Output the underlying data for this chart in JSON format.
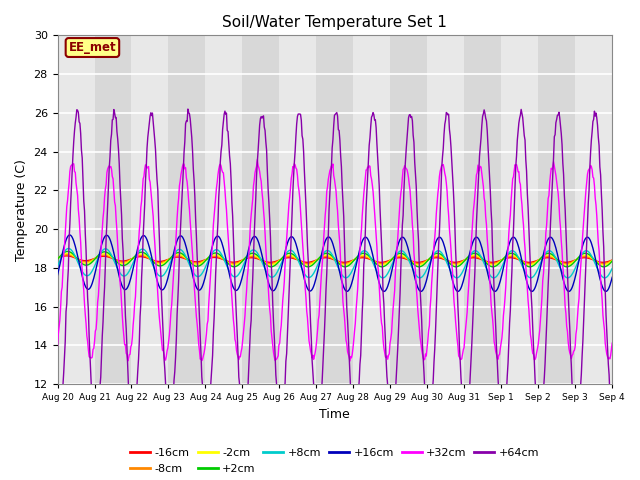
{
  "title": "Soil/Water Temperature Set 1",
  "xlabel": "Time",
  "ylabel": "Temperature (C)",
  "ylim": [
    12,
    30
  ],
  "yticks": [
    12,
    14,
    16,
    18,
    20,
    22,
    24,
    26,
    28,
    30
  ],
  "annotation": "EE_met",
  "series_order": [
    "-16cm",
    "-8cm",
    "-2cm",
    "+2cm",
    "+8cm",
    "+16cm",
    "+32cm",
    "+64cm"
  ],
  "series": {
    "-16cm": {
      "color": "#ff0000",
      "linewidth": 1.0,
      "base": 18.5,
      "amp": 0.12,
      "phase_shift": 0.0
    },
    "-8cm": {
      "color": "#ff8800",
      "linewidth": 1.0,
      "base": 18.5,
      "amp": 0.18,
      "phase_shift": 0.05
    },
    "-2cm": {
      "color": "#ffff00",
      "linewidth": 1.0,
      "base": 18.5,
      "amp": 0.25,
      "phase_shift": 0.1
    },
    "+2cm": {
      "color": "#00cc00",
      "linewidth": 1.0,
      "base": 18.5,
      "amp": 0.35,
      "phase_shift": 0.15
    },
    "+8cm": {
      "color": "#00cccc",
      "linewidth": 1.0,
      "base": 18.3,
      "amp": 0.7,
      "phase_shift": 0.3
    },
    "+16cm": {
      "color": "#0000bb",
      "linewidth": 1.0,
      "base": 18.3,
      "amp": 1.4,
      "phase_shift": 0.5
    },
    "+32cm": {
      "color": "#ff00ff",
      "linewidth": 1.0,
      "base": 18.3,
      "amp": 5.0,
      "phase_shift": 1.0
    },
    "+64cm": {
      "color": "#8800aa",
      "linewidth": 1.0,
      "base": 18.0,
      "amp": 8.0,
      "phase_shift": 1.8
    }
  },
  "xtick_labels": [
    "Aug 20",
    "Aug 21",
    "Aug 22",
    "Aug 23",
    "Aug 24",
    "Aug 25",
    "Aug 26",
    "Aug 27",
    "Aug 28",
    "Aug 29",
    "Aug 30",
    "Aug 31",
    "Sep 1",
    "Sep 2",
    "Sep 3",
    "Sep 4"
  ],
  "bg_color_light": "#e8e8e8",
  "bg_color_dark": "#d8d8d8",
  "grid_color": "#ffffff",
  "figure_bg": "#ffffff"
}
